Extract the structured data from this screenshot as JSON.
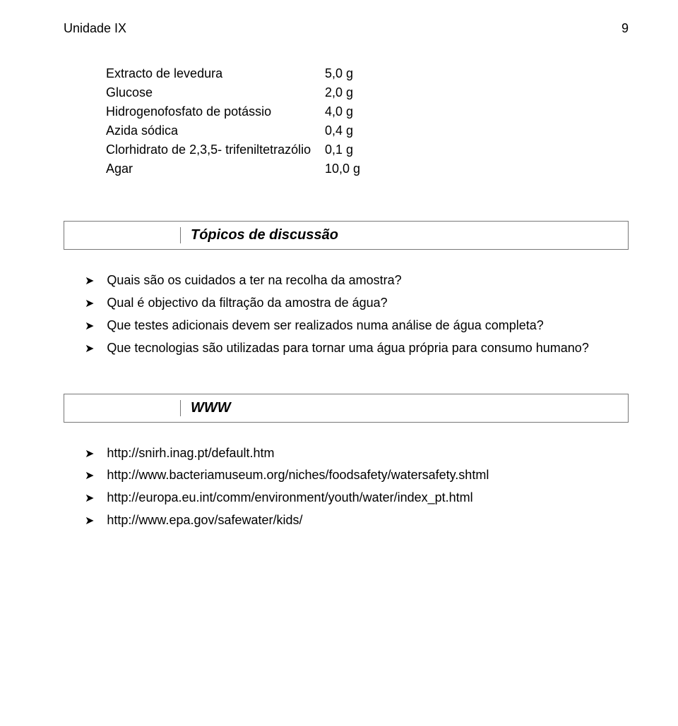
{
  "header": {
    "title": "Unidade IX",
    "page_number": "9"
  },
  "ingredients": [
    {
      "name": "Extracto de levedura",
      "amount": "5,0 g"
    },
    {
      "name": "Glucose",
      "amount": "2,0 g"
    },
    {
      "name": "Hidrogenofosfato de potássio",
      "amount": "4,0 g"
    },
    {
      "name": "Azida sódica",
      "amount": "0,4 g"
    },
    {
      "name": "Clorhidrato de 2,3,5- trifeniltetrazólio",
      "amount": "0,1 g"
    },
    {
      "name": "Agar",
      "amount": "10,0 g"
    }
  ],
  "sections": {
    "discussion": {
      "title": "Tópicos de discussão",
      "items": [
        "Quais são os cuidados a ter na recolha da amostra?",
        "Qual é objectivo da filtração da amostra de água?",
        "Que testes adicionais devem ser realizados numa análise de água completa?",
        "Que tecnologias são utilizadas para tornar uma água própria para consumo humano?"
      ]
    },
    "www": {
      "title": "WWW",
      "items": [
        "http://snirh.inag.pt/default.htm",
        "http://www.bacteriamuseum.org/niches/foodsafety/watersafety.shtml",
        "http://europa.eu.int/comm/environment/youth/water/index_pt.html",
        "http://www.epa.gov/safewater/kids/"
      ]
    }
  },
  "style": {
    "background_color": "#ffffff",
    "text_color": "#000000",
    "border_color": "#777777",
    "font_family": "Arial",
    "body_fontsize": 18,
    "title_fontsize": 20,
    "chevron_glyph": "➤"
  }
}
